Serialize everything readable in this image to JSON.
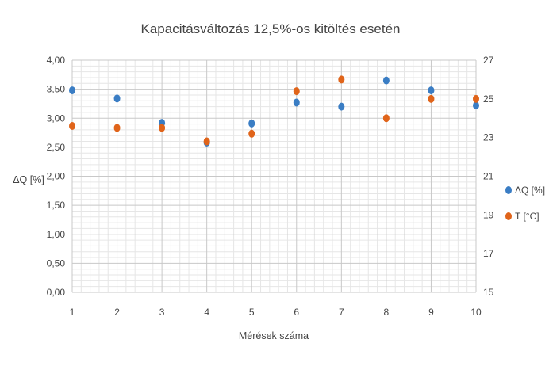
{
  "chart_data": {
    "type": "scatter",
    "title": "Kapacitásváltozás 12,5%-os kitöltés esetén",
    "xlabel": "Mérések száma",
    "ylabel": "ΔQ [%]",
    "y2label": "",
    "x": [
      1,
      2,
      3,
      4,
      5,
      6,
      7,
      8,
      9,
      10
    ],
    "x_tick_labels": [
      "1",
      "2",
      "3",
      "4",
      "5",
      "6",
      "7",
      "8",
      "9",
      "10"
    ],
    "ylim": [
      0,
      4
    ],
    "y_tick_labels": [
      "0,00",
      "0,50",
      "1,00",
      "1,50",
      "2,00",
      "2,50",
      "3,00",
      "3,50",
      "4,00"
    ],
    "y2lim": [
      15,
      27
    ],
    "y2_tick_labels": [
      "15",
      "17",
      "19",
      "21",
      "23",
      "25",
      "27"
    ],
    "grid": true,
    "legend_position": "right",
    "series": [
      {
        "name": "ΔQ [%]",
        "axis": "left",
        "color": "#3A7DC4",
        "values": [
          3.48,
          3.34,
          2.92,
          2.58,
          2.91,
          3.27,
          3.2,
          3.65,
          3.48,
          3.22
        ]
      },
      {
        "name": "T [°C]",
        "axis": "right",
        "color": "#E0641A",
        "values": [
          23.6,
          23.5,
          23.5,
          22.8,
          23.2,
          25.4,
          26.0,
          24.0,
          25.0,
          25.0
        ]
      }
    ]
  }
}
